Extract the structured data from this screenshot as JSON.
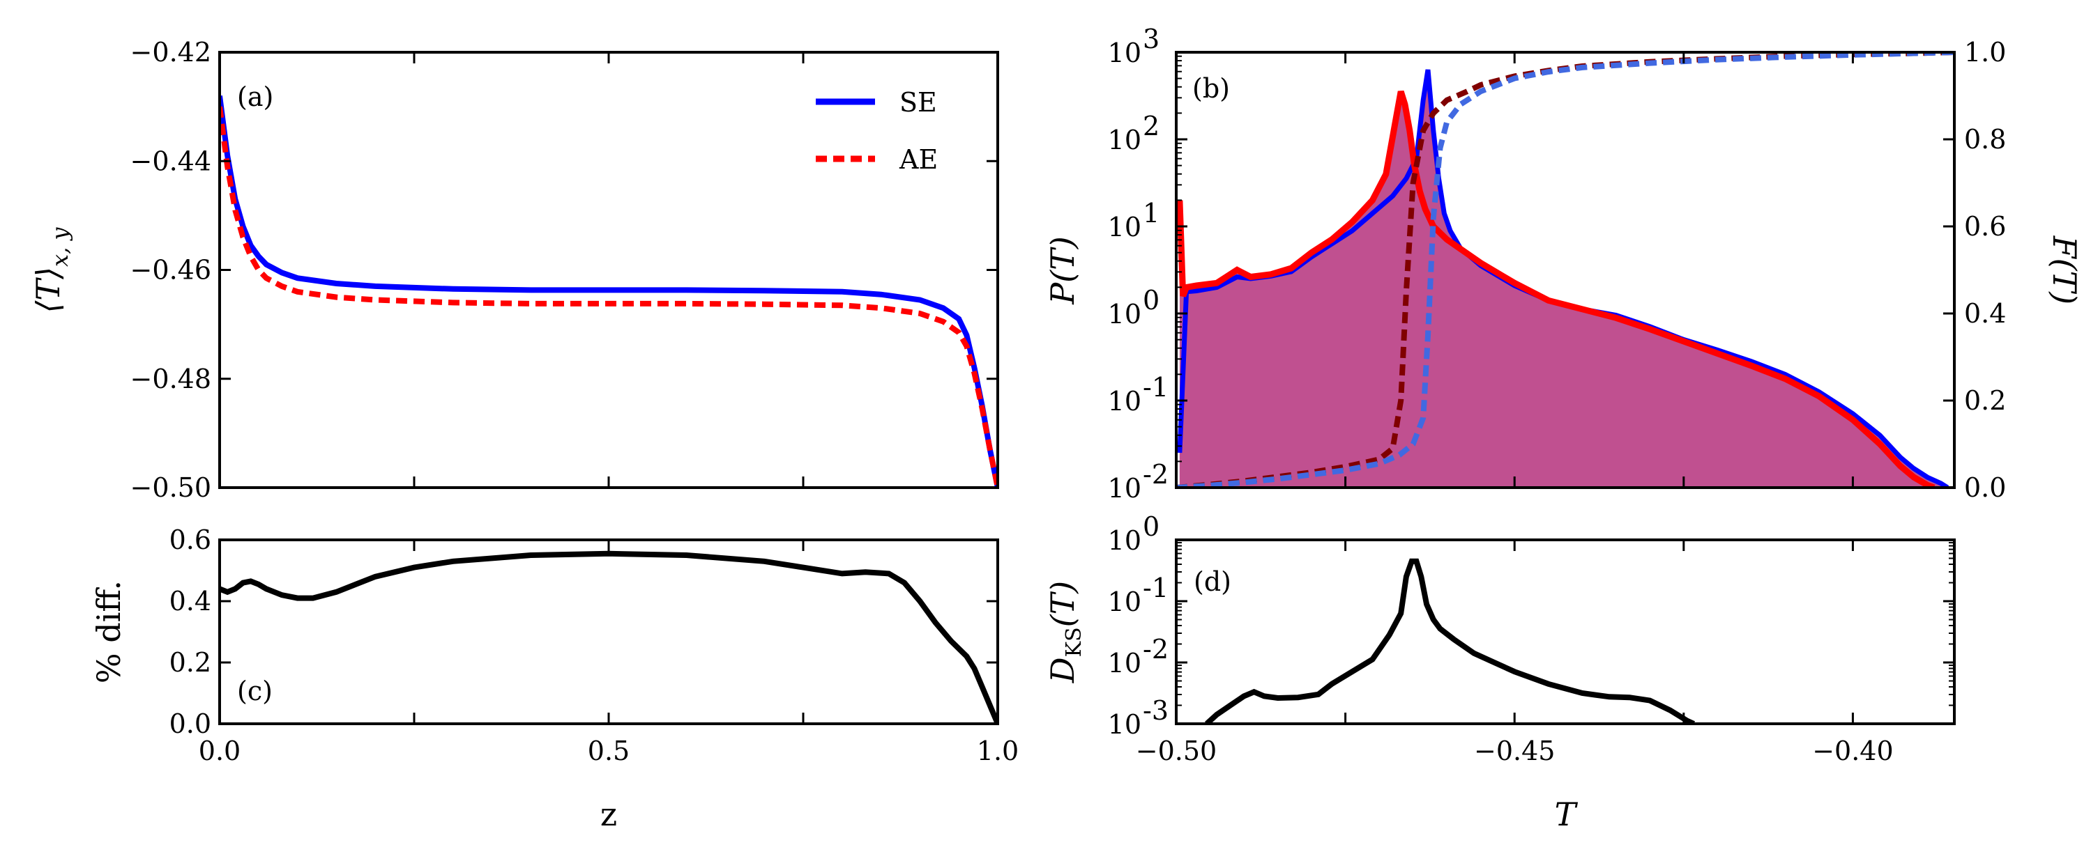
{
  "chart_data": [
    {
      "panel": "(a)",
      "type": "line",
      "xlabel": "z",
      "ylabel": "⟨T⟩",
      "ylabel_sub": "x, y",
      "xlim": [
        0.0,
        1.0
      ],
      "ylim": [
        -0.5,
        -0.42
      ],
      "xticks": [
        "0.0",
        "0.5",
        "1.0"
      ],
      "yticks": [
        "−0.42",
        "−0.44",
        "−0.46",
        "−0.48",
        "−0.50"
      ],
      "legend": "top-right",
      "series": [
        {
          "name": "SE",
          "color": "#0000ff",
          "style": "solid",
          "x": [
            0.0,
            0.01,
            0.02,
            0.03,
            0.04,
            0.05,
            0.06,
            0.08,
            0.1,
            0.15,
            0.2,
            0.3,
            0.4,
            0.5,
            0.6,
            0.7,
            0.8,
            0.85,
            0.9,
            0.93,
            0.95,
            0.96,
            0.97,
            0.98,
            0.99,
            1.0
          ],
          "y": [
            -0.428,
            -0.439,
            -0.447,
            -0.452,
            -0.4555,
            -0.4575,
            -0.459,
            -0.4605,
            -0.4615,
            -0.4625,
            -0.463,
            -0.4635,
            -0.4637,
            -0.4637,
            -0.4637,
            -0.4638,
            -0.464,
            -0.4645,
            -0.4655,
            -0.467,
            -0.469,
            -0.472,
            -0.478,
            -0.485,
            -0.493,
            -0.5
          ]
        },
        {
          "name": "AE",
          "color": "#ff0000",
          "style": "dashed",
          "x": [
            0.0,
            0.01,
            0.02,
            0.03,
            0.04,
            0.05,
            0.06,
            0.08,
            0.1,
            0.15,
            0.2,
            0.3,
            0.4,
            0.5,
            0.6,
            0.7,
            0.8,
            0.85,
            0.9,
            0.93,
            0.95,
            0.96,
            0.97,
            0.98,
            0.99,
            1.0
          ],
          "y": [
            -0.43,
            -0.441,
            -0.449,
            -0.454,
            -0.4575,
            -0.46,
            -0.4615,
            -0.463,
            -0.464,
            -0.465,
            -0.4655,
            -0.466,
            -0.4662,
            -0.4662,
            -0.4662,
            -0.4663,
            -0.4665,
            -0.467,
            -0.468,
            -0.4695,
            -0.4715,
            -0.474,
            -0.479,
            -0.4855,
            -0.493,
            -0.5
          ]
        }
      ]
    },
    {
      "panel": "(b)",
      "type": "line",
      "xlabel": "T",
      "ylabel": "P(T)",
      "ylabel_right": "F(T)",
      "xlim": [
        -0.5,
        -0.385
      ],
      "ylim_log": [
        -2,
        3
      ],
      "ylim_right": [
        0.0,
        1.0
      ],
      "yticks": [
        "10",
        "10",
        "10",
        "10",
        "10",
        "10"
      ],
      "yticks_exp": [
        "-2",
        "-1",
        "0",
        "1",
        "2",
        "3"
      ],
      "yticks_right": [
        "0.0",
        "0.2",
        "0.4",
        "0.6",
        "0.8",
        "1.0"
      ],
      "fill_color": "#c05090",
      "series": [
        {
          "name": "P_SE",
          "color": "#0000ff",
          "style": "solid",
          "x": [
            -0.4995,
            -0.4985,
            -0.497,
            -0.494,
            -0.491,
            -0.489,
            -0.486,
            -0.483,
            -0.48,
            -0.477,
            -0.474,
            -0.471,
            -0.468,
            -0.466,
            -0.4645,
            -0.4635,
            -0.4628,
            -0.462,
            -0.4612,
            -0.4604,
            -0.4595,
            -0.458,
            -0.455,
            -0.45,
            -0.445,
            -0.44,
            -0.435,
            -0.43,
            -0.425,
            -0.42,
            -0.415,
            -0.41,
            -0.405,
            -0.4,
            -0.396,
            -0.393,
            -0.391,
            -0.389,
            -0.387,
            -0.386
          ],
          "y": [
            -1.6,
            0.25,
            0.26,
            0.3,
            0.42,
            0.4,
            0.43,
            0.48,
            0.65,
            0.8,
            0.95,
            1.15,
            1.35,
            1.55,
            1.78,
            2.45,
            2.8,
            2.1,
            1.55,
            1.15,
            0.95,
            0.75,
            0.55,
            0.32,
            0.15,
            0.05,
            -0.02,
            -0.15,
            -0.3,
            -0.42,
            -0.55,
            -0.7,
            -0.9,
            -1.15,
            -1.4,
            -1.65,
            -1.78,
            -1.88,
            -1.95,
            -2.0
          ]
        },
        {
          "name": "P_AE",
          "color": "#ff0000",
          "style": "solid",
          "x": [
            -0.4995,
            -0.499,
            -0.4985,
            -0.497,
            -0.494,
            -0.491,
            -0.489,
            -0.486,
            -0.483,
            -0.48,
            -0.477,
            -0.474,
            -0.471,
            -0.469,
            -0.4675,
            -0.4668,
            -0.4662,
            -0.4655,
            -0.4648,
            -0.464,
            -0.4632,
            -0.462,
            -0.46,
            -0.455,
            -0.45,
            -0.445,
            -0.44,
            -0.435,
            -0.43,
            -0.425,
            -0.42,
            -0.415,
            -0.41,
            -0.405,
            -0.4,
            -0.396,
            -0.393,
            -0.391,
            -0.389,
            -0.388
          ],
          "y": [
            1.3,
            0.2,
            0.3,
            0.32,
            0.35,
            0.5,
            0.42,
            0.45,
            0.52,
            0.7,
            0.85,
            1.05,
            1.3,
            1.6,
            2.25,
            2.55,
            2.4,
            2.1,
            1.7,
            1.4,
            1.2,
            1.0,
            0.85,
            0.58,
            0.35,
            0.15,
            0.05,
            -0.05,
            -0.18,
            -0.32,
            -0.46,
            -0.6,
            -0.75,
            -0.95,
            -1.22,
            -1.5,
            -1.75,
            -1.88,
            -1.97,
            -2.0
          ]
        },
        {
          "name": "F_SE",
          "color": "#4169e1",
          "style": "dashed",
          "x": [
            -0.5,
            -0.495,
            -0.49,
            -0.485,
            -0.48,
            -0.475,
            -0.47,
            -0.467,
            -0.465,
            -0.4635,
            -0.4628,
            -0.462,
            -0.461,
            -0.46,
            -0.458,
            -0.455,
            -0.45,
            -0.445,
            -0.44,
            -0.43,
            -0.42,
            -0.41,
            -0.4,
            -0.39,
            -0.385
          ],
          "y": [
            0.0,
            0.005,
            0.012,
            0.02,
            0.03,
            0.04,
            0.055,
            0.075,
            0.1,
            0.16,
            0.35,
            0.62,
            0.78,
            0.84,
            0.88,
            0.91,
            0.94,
            0.955,
            0.965,
            0.975,
            0.983,
            0.989,
            0.994,
            0.998,
            1.0
          ]
        },
        {
          "name": "F_AE",
          "color": "#800000",
          "style": "dashed",
          "x": [
            -0.5,
            -0.495,
            -0.49,
            -0.485,
            -0.48,
            -0.475,
            -0.47,
            -0.468,
            -0.4668,
            -0.466,
            -0.465,
            -0.4635,
            -0.462,
            -0.46,
            -0.457,
            -0.455,
            -0.45,
            -0.445,
            -0.44,
            -0.43,
            -0.42,
            -0.41,
            -0.4,
            -0.39,
            -0.385
          ],
          "y": [
            0.0,
            0.007,
            0.015,
            0.025,
            0.035,
            0.048,
            0.065,
            0.09,
            0.2,
            0.45,
            0.7,
            0.82,
            0.86,
            0.89,
            0.91,
            0.925,
            0.945,
            0.958,
            0.968,
            0.978,
            0.985,
            0.991,
            0.995,
            0.998,
            1.0
          ]
        }
      ]
    },
    {
      "panel": "(c)",
      "type": "line",
      "xlabel": "z",
      "ylabel": "% diff.",
      "xlim": [
        0.0,
        1.0
      ],
      "ylim": [
        0.0,
        0.6
      ],
      "xticks": [
        "0.0",
        "0.5",
        "1.0"
      ],
      "yticks": [
        "0.0",
        "0.2",
        "0.4",
        "0.6"
      ],
      "series": [
        {
          "name": "diff",
          "color": "#000000",
          "style": "solid",
          "x": [
            0.0,
            0.01,
            0.02,
            0.03,
            0.04,
            0.05,
            0.06,
            0.08,
            0.1,
            0.12,
            0.15,
            0.2,
            0.25,
            0.3,
            0.4,
            0.5,
            0.6,
            0.7,
            0.75,
            0.8,
            0.83,
            0.86,
            0.88,
            0.9,
            0.92,
            0.94,
            0.96,
            0.97,
            0.98,
            0.99,
            1.0
          ],
          "y": [
            0.44,
            0.43,
            0.44,
            0.46,
            0.465,
            0.455,
            0.44,
            0.42,
            0.41,
            0.41,
            0.43,
            0.48,
            0.51,
            0.53,
            0.55,
            0.555,
            0.55,
            0.53,
            0.51,
            0.49,
            0.495,
            0.49,
            0.46,
            0.4,
            0.33,
            0.27,
            0.22,
            0.18,
            0.12,
            0.06,
            0.0
          ]
        }
      ]
    },
    {
      "panel": "(d)",
      "type": "line",
      "xlabel": "T",
      "ylabel": "D",
      "ylabel_sub": "KS",
      "ylabel_tail": "(T)",
      "xlim": [
        -0.5,
        -0.385
      ],
      "ylim_log": [
        -3,
        0
      ],
      "xticks": [
        "−0.50",
        "−0.45",
        "−0.40"
      ],
      "xtick_values": [
        -0.5,
        -0.45,
        -0.4
      ],
      "yticks": [
        "10",
        "10",
        "10",
        "10"
      ],
      "yticks_exp": [
        "-3",
        "-2",
        "-1",
        "0"
      ],
      "series": [
        {
          "name": "D",
          "color": "#000000",
          "style": "solid",
          "x": [
            -0.4955,
            -0.494,
            -0.492,
            -0.49,
            -0.4885,
            -0.487,
            -0.485,
            -0.482,
            -0.479,
            -0.477,
            -0.474,
            -0.471,
            -0.4685,
            -0.4668,
            -0.466,
            -0.4652,
            -0.4645,
            -0.4638,
            -0.463,
            -0.462,
            -0.461,
            -0.459,
            -0.456,
            -0.453,
            -0.45,
            -0.445,
            -0.44,
            -0.436,
            -0.433,
            -0.43,
            -0.427,
            -0.4245,
            -0.4235
          ],
          "y": [
            -3.0,
            -2.85,
            -2.7,
            -2.55,
            -2.48,
            -2.55,
            -2.58,
            -2.57,
            -2.52,
            -2.35,
            -2.15,
            -1.95,
            -1.55,
            -1.2,
            -0.6,
            -0.35,
            -0.35,
            -0.6,
            -1.05,
            -1.3,
            -1.45,
            -1.62,
            -1.85,
            -2.0,
            -2.15,
            -2.35,
            -2.5,
            -2.56,
            -2.57,
            -2.62,
            -2.78,
            -2.95,
            -3.0
          ]
        }
      ]
    }
  ]
}
